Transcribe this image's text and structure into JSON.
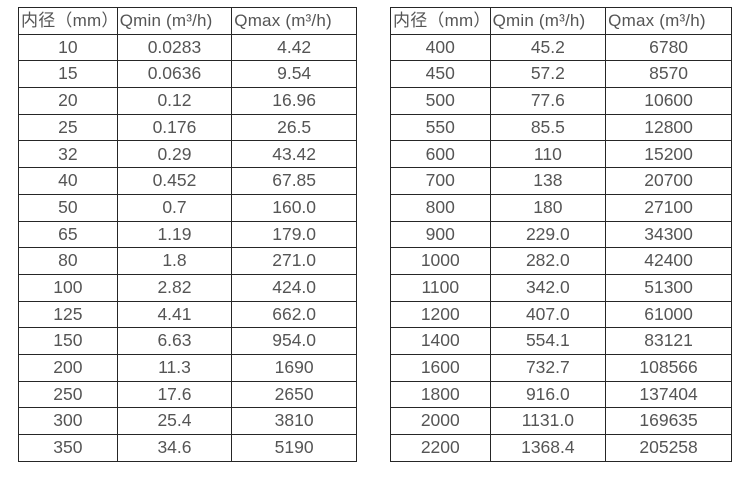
{
  "page": {
    "background": "#ffffff",
    "border_color": "#262626",
    "text_color": "#555555"
  },
  "tables": [
    {
      "name": "flow-spec-small-diameters",
      "headers": [
        "内径（mm）",
        "Qmin (m³/h)",
        "Qmax (m³/h)"
      ],
      "rows": [
        [
          "10",
          "0.0283",
          "4.42"
        ],
        [
          "15",
          "0.0636",
          "9.54"
        ],
        [
          "20",
          "0.12",
          "16.96"
        ],
        [
          "25",
          "0.176",
          "26.5"
        ],
        [
          "32",
          "0.29",
          "43.42"
        ],
        [
          "40",
          "0.452",
          "67.85"
        ],
        [
          "50",
          "0.7",
          "160.0"
        ],
        [
          "65",
          "1.19",
          "179.0"
        ],
        [
          "80",
          "1.8",
          "271.0"
        ],
        [
          "100",
          "2.82",
          "424.0"
        ],
        [
          "125",
          "4.41",
          "662.0"
        ],
        [
          "150",
          "6.63",
          "954.0"
        ],
        [
          "200",
          "11.3",
          "1690"
        ],
        [
          "250",
          "17.6",
          "2650"
        ],
        [
          "300",
          "25.4",
          "3810"
        ],
        [
          "350",
          "34.6",
          "5190"
        ]
      ]
    },
    {
      "name": "flow-spec-large-diameters",
      "headers": [
        "内径（mm）",
        "Qmin (m³/h)",
        "Qmax (m³/h)"
      ],
      "rows": [
        [
          "400",
          "45.2",
          "6780"
        ],
        [
          "450",
          "57.2",
          "8570"
        ],
        [
          "500",
          "77.6",
          "10600"
        ],
        [
          "550",
          "85.5",
          "12800"
        ],
        [
          "600",
          "110",
          "15200"
        ],
        [
          "700",
          "138",
          "20700"
        ],
        [
          "800",
          "180",
          "27100"
        ],
        [
          "900",
          "229.0",
          "34300"
        ],
        [
          "1000",
          "282.0",
          "42400"
        ],
        [
          "1100",
          "342.0",
          "51300"
        ],
        [
          "1200",
          "407.0",
          "61000"
        ],
        [
          "1400",
          "554.1",
          "83121"
        ],
        [
          "1600",
          "732.7",
          "108566"
        ],
        [
          "1800",
          "916.0",
          "137404"
        ],
        [
          "2000",
          "1131.0",
          "169635"
        ],
        [
          "2200",
          "1368.4",
          "205258"
        ]
      ]
    }
  ]
}
